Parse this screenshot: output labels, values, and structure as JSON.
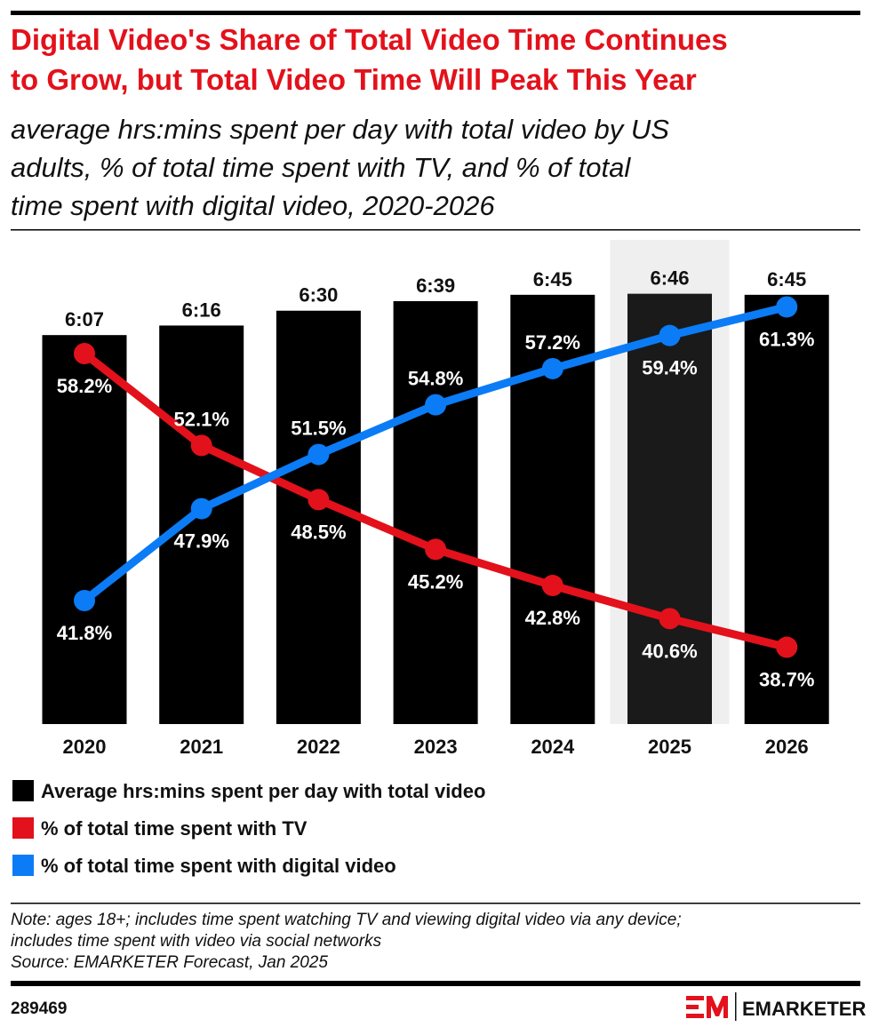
{
  "header": {
    "title_lines": [
      "Digital Video's Share of Total Video Time Continues",
      "to Grow, but Total Video Time Will Peak This Year"
    ],
    "subtitle_lines": [
      "average hrs:mins spent per day with total video by US",
      "adults, % of total time spent with TV, and % of total",
      "time spent with digital video, 2020-2026"
    ]
  },
  "chart_data": {
    "type": "bar",
    "categories": [
      "2020",
      "2021",
      "2022",
      "2023",
      "2024",
      "2025",
      "2026"
    ],
    "highlight_category": "2025",
    "bars": {
      "name": "Average hrs:mins spent per day with total video",
      "labels": [
        "6:07",
        "6:16",
        "6:30",
        "6:39",
        "6:45",
        "6:46",
        "6:45"
      ],
      "minutes": [
        367,
        376,
        390,
        399,
        405,
        406,
        405
      ],
      "color": "#000000"
    },
    "series": [
      {
        "name": "% of total time spent with TV",
        "type": "line",
        "color": "#e3111b",
        "values": [
          58.2,
          52.1,
          48.5,
          45.2,
          42.8,
          40.6,
          38.7
        ],
        "labels": [
          "58.2%",
          "52.1%",
          "48.5%",
          "45.2%",
          "42.8%",
          "40.6%",
          "38.7%"
        ],
        "label_pos": [
          "below",
          "above",
          "below",
          "below",
          "below",
          "below",
          "below"
        ]
      },
      {
        "name": "% of total time spent with digital video",
        "type": "line",
        "color": "#0b7cf5",
        "values": [
          41.8,
          47.9,
          51.5,
          54.8,
          57.2,
          59.4,
          61.3
        ],
        "labels": [
          "41.8%",
          "47.9%",
          "51.5%",
          "54.8%",
          "57.2%",
          "59.4%",
          "61.3%"
        ],
        "label_pos": [
          "below",
          "below",
          "above",
          "above",
          "above",
          "below",
          "below"
        ]
      }
    ]
  },
  "legend": [
    {
      "label": "Average hrs:mins spent per day with total video",
      "color": "#000000"
    },
    {
      "label": "% of total time spent with TV",
      "color": "#e3111b"
    },
    {
      "label": "% of total time spent with digital video",
      "color": "#0b7cf5"
    }
  ],
  "notes": [
    "Note: ages 18+; includes time spent watching TV and viewing digital video via any device;",
    "includes time spent with video via social networks",
    "Source: EMARKETER Forecast, Jan 2025"
  ],
  "footer": {
    "id": "289469",
    "brand": "EMARKETER",
    "brand_mark": "EM"
  }
}
